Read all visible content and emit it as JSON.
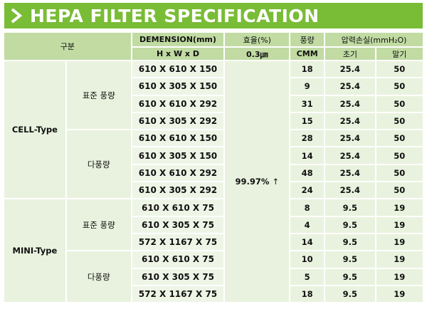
{
  "title": "HEPA FILTER SPECIFICATION",
  "icons": {
    "title_marker": "chevron-right-icon"
  },
  "colors": {
    "banner": "#79bc36",
    "header_cell": "#c1dba3",
    "body_cell": "#e9f2de"
  },
  "header": {
    "category": "구분",
    "dimension": "DEMENSION(mm)",
    "dimension_sub": "H  x  W  x  D",
    "efficiency": "효율(%)",
    "efficiency_sub": "0.3㎛",
    "airflow": "풍량",
    "airflow_sub": "CMM",
    "pressure_loss": "압력손실(mmH₂O)",
    "pressure_initial": "초기",
    "pressure_final": "말기"
  },
  "efficiency_value": "99.97%",
  "efficiency_arrow": "↑",
  "types": [
    {
      "name": "CELL-Type",
      "groups": [
        {
          "name": "표준 풍량",
          "rows": [
            {
              "dim": "610 X 610 X 150",
              "cmm": "18",
              "initial": "25.4",
              "final": "50"
            },
            {
              "dim": "610 X 305 X 150",
              "cmm": "9",
              "initial": "25.4",
              "final": "50"
            },
            {
              "dim": "610 X 610 X 292",
              "cmm": "31",
              "initial": "25.4",
              "final": "50"
            },
            {
              "dim": "610 X 305 X 292",
              "cmm": "15",
              "initial": "25.4",
              "final": "50"
            }
          ]
        },
        {
          "name": "다풍량",
          "rows": [
            {
              "dim": "610 X 610 X 150",
              "cmm": "28",
              "initial": "25.4",
              "final": "50"
            },
            {
              "dim": "610 X 305 X 150",
              "cmm": "14",
              "initial": "25.4",
              "final": "50"
            },
            {
              "dim": "610 X 610 X 292",
              "cmm": "48",
              "initial": "25.4",
              "final": "50"
            },
            {
              "dim": "610 X 305 X 292",
              "cmm": "24",
              "initial": "25.4",
              "final": "50"
            }
          ]
        }
      ]
    },
    {
      "name": "MINI-Type",
      "groups": [
        {
          "name": "표준 풍량",
          "rows": [
            {
              "dim": "610 X 610 X 75",
              "cmm": "8",
              "initial": "9.5",
              "final": "19"
            },
            {
              "dim": "610 X 305 X 75",
              "cmm": "4",
              "initial": "9.5",
              "final": "19"
            },
            {
              "dim": "572 X 1167 X 75",
              "cmm": "14",
              "initial": "9.5",
              "final": "19"
            }
          ]
        },
        {
          "name": "다풍량",
          "rows": [
            {
              "dim": "610 X 610 X 75",
              "cmm": "10",
              "initial": "9.5",
              "final": "19"
            },
            {
              "dim": "610 X 305 X 75",
              "cmm": "5",
              "initial": "9.5",
              "final": "19"
            },
            {
              "dim": "572 X 1167 X 75",
              "cmm": "18",
              "initial": "9.5",
              "final": "19"
            }
          ]
        }
      ]
    }
  ]
}
